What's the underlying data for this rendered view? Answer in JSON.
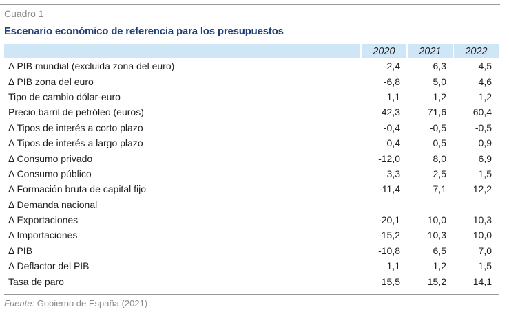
{
  "box_label": "Cuadro 1",
  "title": "Escenario económico de referencia para los presupuestos",
  "table": {
    "years": [
      "2020",
      "2021",
      "2022"
    ],
    "rows": [
      {
        "label": "Δ PIB mundial (excluida zona del euro)",
        "values": [
          "-2,4",
          "6,3",
          "4,5"
        ]
      },
      {
        "label": "Δ PIB zona del euro",
        "values": [
          "-6,8",
          "5,0",
          "4,6"
        ]
      },
      {
        "label": "Tipo de cambio dólar-euro",
        "values": [
          "1,1",
          "1,2",
          "1,2"
        ]
      },
      {
        "label": "Precio barril de petróleo (euros)",
        "values": [
          "42,3",
          "71,6",
          "60,4"
        ]
      },
      {
        "label": "Δ Tipos de interés a corto plazo",
        "values": [
          "-0,4",
          "-0,5",
          "-0,5"
        ]
      },
      {
        "label": "Δ Tipos de interés a largo plazo",
        "values": [
          "0,4",
          "0,5",
          "0,9"
        ]
      },
      {
        "label": "Δ Consumo privado",
        "values": [
          "-12,0",
          "8,0",
          "6,9"
        ]
      },
      {
        "label": "Δ Consumo público",
        "values": [
          "3,3",
          "2,5",
          "1,5"
        ]
      },
      {
        "label": "Δ Formación bruta de capital fijo",
        "values": [
          "-11,4",
          "7,1",
          "12,2"
        ]
      },
      {
        "label": "Δ Demanda nacional",
        "values": [
          "",
          "",
          ""
        ]
      },
      {
        "label": "Δ Exportaciones",
        "values": [
          "-20,1",
          "10,0",
          "10,3"
        ]
      },
      {
        "label": "Δ Importaciones",
        "values": [
          "-15,2",
          "10,3",
          "10,0"
        ]
      },
      {
        "label": "Δ PIB",
        "values": [
          "-10,8",
          "6,5",
          "7,0"
        ]
      },
      {
        "label": "Δ Deflactor del PIB",
        "values": [
          "1,1",
          "1,2",
          "1,5"
        ]
      },
      {
        "label": "Tasa de paro",
        "values": [
          "15,5",
          "15,2",
          "14,1"
        ]
      }
    ]
  },
  "source": {
    "prefix": "Fuente:",
    "text": " Gobierno de España (2021)"
  },
  "colors": {
    "header_band": "#cfe6f6",
    "title": "#1d3f7a",
    "muted": "#8a8a8a"
  }
}
